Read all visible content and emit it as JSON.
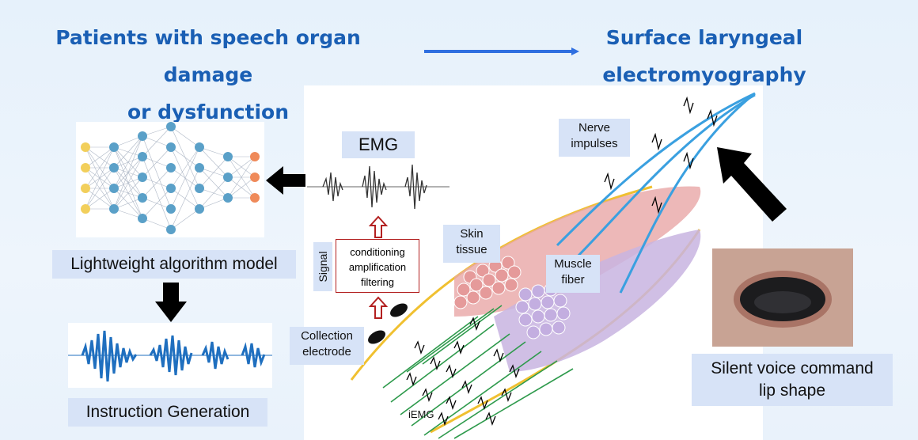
{
  "title_left": {
    "line1": "Patients with speech organ damage",
    "line2": "or dysfunction"
  },
  "title_right": {
    "line1": "Surface laryngeal",
    "line2": "electromyography"
  },
  "labels": {
    "emg": "EMG",
    "nerve_line1": "Nerve",
    "nerve_line2": "impulses",
    "skin_line1": "Skin",
    "skin_line2": "tissue",
    "muscle_line1": "Muscle",
    "muscle_line2": "fiber",
    "signal": "Signal",
    "conditioning": "conditioning",
    "amplification": "amplification",
    "filtering": "filtering",
    "collection_line1": "Collection",
    "collection_line2": "electrode",
    "iemg": "iEMG",
    "algorithm_model": "Lightweight algorithm model",
    "instruction_generation": "Instruction Generation",
    "silent_line1": "Silent voice command",
    "silent_line2": "lip shape"
  },
  "colors": {
    "title_blue": "#1a5fb4",
    "arrow_blue": "#2f6fe0",
    "label_bg": "#d7e3f7",
    "nerve": "#3aa0e0",
    "muscle_red": "#e8a6a6",
    "muscle_purple": "#c8b4e0",
    "fiber_green": "#2e9a4c",
    "skin_outline": "#f0c030",
    "waveform_blue": "#1f6fbf"
  },
  "icons": [
    "neural-network-icon",
    "waveform-icon",
    "mouth-photo",
    "electrode-icon"
  ]
}
